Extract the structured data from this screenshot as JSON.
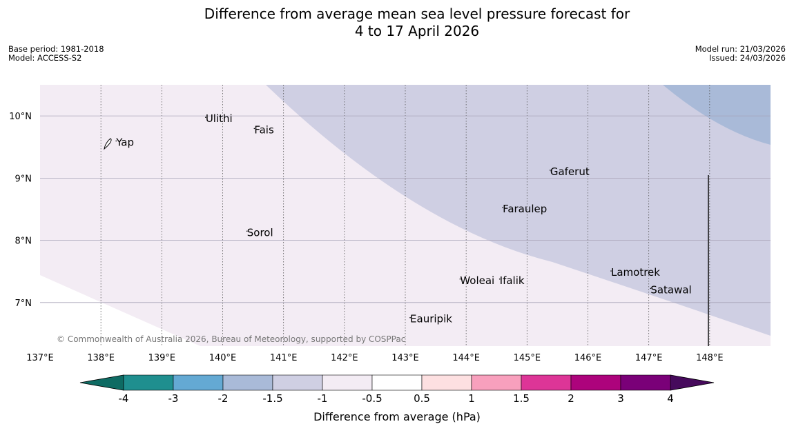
{
  "title": {
    "line1": "Difference from average mean sea level pressure forecast for",
    "line2": "4 to 17 April 2026"
  },
  "meta_left": {
    "base_period": "Base period: 1981-2018",
    "model": "Model: ACCESS-S2"
  },
  "meta_right": {
    "model_run": "Model run: 21/03/2026",
    "issued": "Issued: 24/03/2026"
  },
  "map": {
    "extent": {
      "lon_min": 137,
      "lon_max": 149,
      "lat_min": 6.3,
      "lat_max": 10.5
    },
    "lon_ticks": [
      {
        "value": 137,
        "label": "137°E"
      },
      {
        "value": 138,
        "label": "138°E"
      },
      {
        "value": 139,
        "label": "139°E"
      },
      {
        "value": 140,
        "label": "140°E"
      },
      {
        "value": 141,
        "label": "141°E"
      },
      {
        "value": 142,
        "label": "142°E"
      },
      {
        "value": 143,
        "label": "143°E"
      },
      {
        "value": 144,
        "label": "144°E"
      },
      {
        "value": 145,
        "label": "145°E"
      },
      {
        "value": 146,
        "label": "146°E"
      },
      {
        "value": 147,
        "label": "147°E"
      },
      {
        "value": 148,
        "label": "148°E"
      }
    ],
    "lat_ticks": [
      {
        "value": 10,
        "label": "10°N"
      },
      {
        "value": 9,
        "label": "9°N"
      },
      {
        "value": 8,
        "label": "8°N"
      },
      {
        "value": 7,
        "label": "7°N"
      }
    ],
    "places": [
      {
        "name": "Yap",
        "lon": 138.25,
        "lat": 9.52
      },
      {
        "name": "Ulithi",
        "lon": 139.72,
        "lat": 9.9
      },
      {
        "name": "Fais",
        "lon": 140.52,
        "lat": 9.72
      },
      {
        "name": "Sorol",
        "lon": 140.4,
        "lat": 8.07
      },
      {
        "name": "Gaferut",
        "lon": 145.38,
        "lat": 9.05
      },
      {
        "name": "Faraulep",
        "lon": 144.6,
        "lat": 8.45
      },
      {
        "name": "Woleai",
        "lon": 143.9,
        "lat": 7.3
      },
      {
        "name": "Ifalik",
        "lon": 144.55,
        "lat": 7.3
      },
      {
        "name": "Lamotrek",
        "lon": 146.38,
        "lat": 7.43
      },
      {
        "name": "Satawal",
        "lon": 147.03,
        "lat": 7.15
      },
      {
        "name": "Eauripik",
        "lon": 143.08,
        "lat": 6.68
      }
    ],
    "copyright": "© Commonwealth of Australia 2026, Bureau of Meteorology, supported by COSPPac",
    "colors": {
      "bg_band": "#f3ecf4",
      "mid_band": "#cfcfe3",
      "low_band": "#a9bad8"
    }
  },
  "colorbar": {
    "label": "Difference from average (hPa)",
    "tick_labels": [
      "-4",
      "-3",
      "-2",
      "-1.5",
      "-1",
      "-0.5",
      "0.5",
      "1",
      "1.5",
      "2",
      "3",
      "4"
    ],
    "under_color": "#0e6b63",
    "over_color": "#460a5c",
    "colors": [
      "#1f8f8f",
      "#64a9d3",
      "#a9bad8",
      "#cfcfe3",
      "#f3ecf4",
      "#ffffff",
      "#fde0e1",
      "#f8a0bd",
      "#dd3597",
      "#ad037c",
      "#7a0078"
    ]
  }
}
